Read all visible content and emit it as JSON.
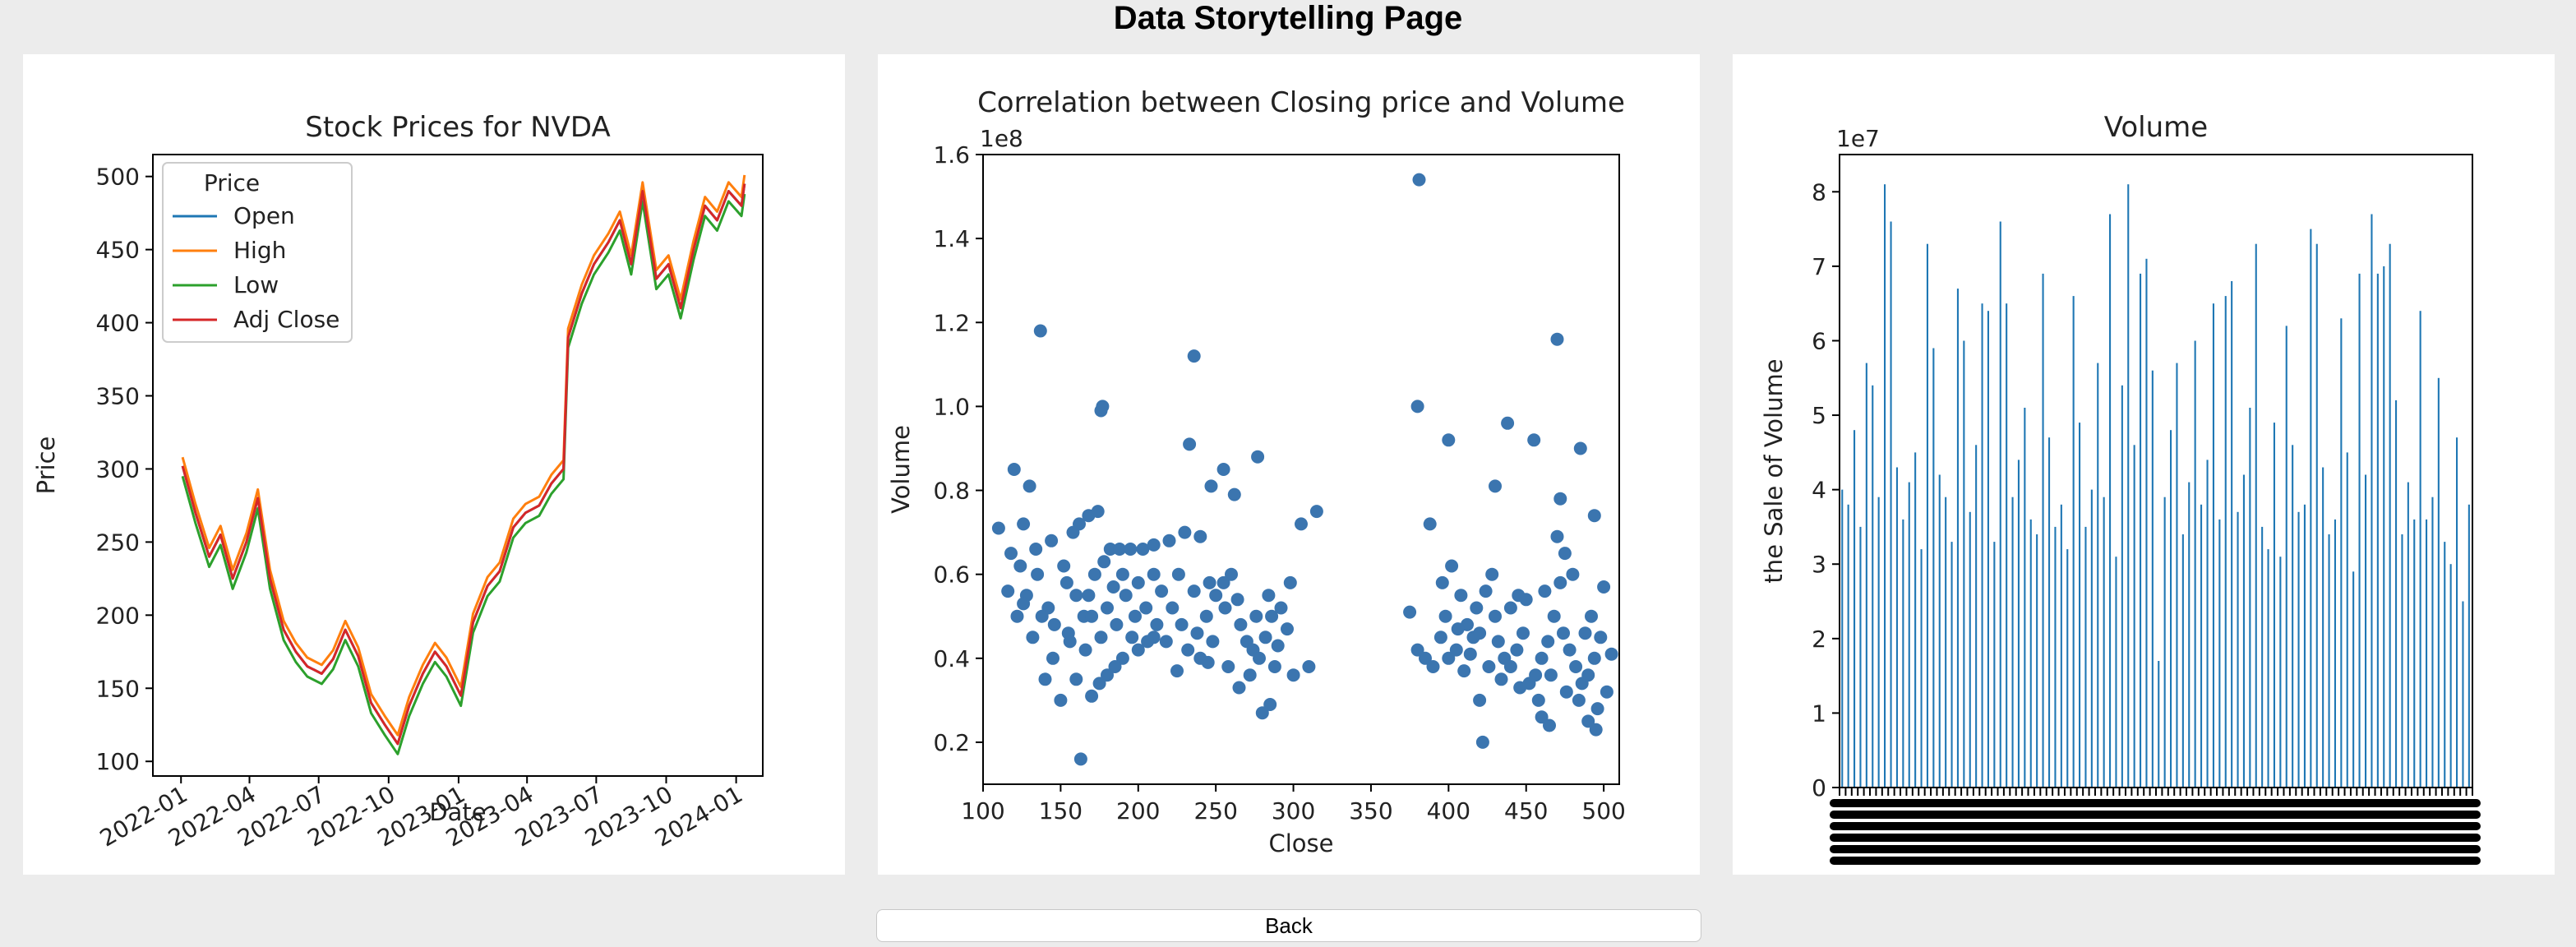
{
  "page": {
    "title": "Data Storytelling Page",
    "back_label": "Back"
  },
  "chart_data": [
    {
      "type": "line",
      "title": "Stock Prices for NVDA",
      "xlabel": "Date",
      "ylabel": "Price",
      "legend_title": "Price",
      "legend_position": "top-left",
      "xlim": [
        "2021-11-25",
        "2024-02-05"
      ],
      "ylim": [
        90,
        515
      ],
      "x_ticks": [
        "2022-01",
        "2022-04",
        "2022-07",
        "2022-10",
        "2023-01",
        "2023-04",
        "2023-07",
        "2023-10",
        "2024-01"
      ],
      "y_ticks": [
        100,
        150,
        200,
        250,
        300,
        350,
        400,
        450,
        500
      ],
      "x": [
        "2022-01-03",
        "2022-01-20",
        "2022-02-07",
        "2022-02-22",
        "2022-03-10",
        "2022-03-28",
        "2022-04-12",
        "2022-04-28",
        "2022-05-16",
        "2022-06-01",
        "2022-06-16",
        "2022-07-05",
        "2022-07-20",
        "2022-08-05",
        "2022-08-22",
        "2022-09-08",
        "2022-09-26",
        "2022-10-13",
        "2022-10-28",
        "2022-11-15",
        "2022-12-01",
        "2022-12-16",
        "2023-01-04",
        "2023-01-20",
        "2023-02-08",
        "2023-02-24",
        "2023-03-14",
        "2023-03-30",
        "2023-04-17",
        "2023-05-03",
        "2023-05-19",
        "2023-05-25",
        "2023-06-12",
        "2023-06-28",
        "2023-07-17",
        "2023-08-01",
        "2023-08-16",
        "2023-08-31",
        "2023-09-18",
        "2023-10-04",
        "2023-10-20",
        "2023-11-06",
        "2023-11-21",
        "2023-12-07",
        "2023-12-22",
        "2024-01-08",
        "2024-01-12"
      ],
      "series": [
        {
          "name": "Open",
          "color": "#1f77b4"
        },
        {
          "name": "High",
          "color": "#ff7f0e"
        },
        {
          "name": "Low",
          "color": "#2ca02c"
        },
        {
          "name": "Adj Close",
          "color": "#d62728",
          "values": [
            302,
            270,
            240,
            255,
            225,
            250,
            280,
            225,
            190,
            175,
            165,
            160,
            170,
            190,
            172,
            140,
            125,
            112,
            138,
            160,
            175,
            165,
            145,
            195,
            220,
            230,
            260,
            270,
            275,
            290,
            300,
            390,
            420,
            440,
            455,
            470,
            440,
            490,
            430,
            440,
            410,
            450,
            480,
            470,
            490,
            480,
            495
          ]
        }
      ]
    },
    {
      "type": "scatter",
      "title": "Correlation between Closing price and Volume",
      "xlabel": "Close",
      "ylabel": "Volume",
      "y_offset_label": "1e8",
      "xlim": [
        100,
        510
      ],
      "ylim": [
        0.1,
        1.6
      ],
      "x_ticks": [
        100,
        150,
        200,
        250,
        300,
        350,
        400,
        450,
        500
      ],
      "y_ticks": [
        0.2,
        0.4,
        0.6,
        0.8,
        1.0,
        1.2,
        1.4,
        1.6
      ],
      "color": "#3b75af",
      "points": [
        [
          137,
          1.18
        ],
        [
          163,
          0.16
        ],
        [
          176,
          0.99
        ],
        [
          177,
          1.0
        ],
        [
          233,
          0.91
        ],
        [
          236,
          1.12
        ],
        [
          247,
          0.81
        ],
        [
          255,
          0.85
        ],
        [
          262,
          0.79
        ],
        [
          277,
          0.88
        ],
        [
          305,
          0.72
        ],
        [
          315,
          0.75
        ],
        [
          120,
          0.85
        ],
        [
          126,
          0.72
        ],
        [
          130,
          0.81
        ],
        [
          110,
          0.71
        ],
        [
          375,
          0.51
        ],
        [
          381,
          1.54
        ],
        [
          380,
          1.0
        ],
        [
          388,
          0.72
        ],
        [
          400,
          0.92
        ],
        [
          422,
          0.2
        ],
        [
          430,
          0.81
        ],
        [
          438,
          0.96
        ],
        [
          455,
          0.92
        ],
        [
          470,
          1.16
        ],
        [
          485,
          0.9
        ],
        [
          494,
          0.74
        ],
        [
          500,
          0.57
        ],
        [
          505,
          0.41
        ],
        [
          490,
          0.25
        ],
        [
          495,
          0.23
        ],
        [
          465,
          0.24
        ],
        [
          460,
          0.26
        ],
        [
          480,
          0.6
        ],
        [
          475,
          0.65
        ],
        [
          470,
          0.69
        ],
        [
          472,
          0.78
        ],
        [
          445,
          0.55
        ],
        [
          410,
          0.37
        ],
        [
          400,
          0.4
        ],
        [
          395,
          0.45
        ],
        [
          385,
          0.4
        ],
        [
          416,
          0.45
        ],
        [
          420,
          0.3
        ],
        [
          150,
          0.3
        ],
        [
          160,
          0.35
        ],
        [
          170,
          0.31
        ],
        [
          280,
          0.27
        ],
        [
          285,
          0.29
        ],
        [
          300,
          0.36
        ],
        [
          310,
          0.38
        ],
        [
          265,
          0.33
        ],
        [
          245,
          0.39
        ],
        [
          225,
          0.37
        ],
        [
          210,
          0.45
        ],
        [
          200,
          0.42
        ],
        [
          190,
          0.4
        ],
        [
          185,
          0.38
        ],
        [
          180,
          0.36
        ],
        [
          175,
          0.34
        ],
        [
          140,
          0.35
        ],
        [
          145,
          0.4
        ],
        [
          155,
          0.46
        ],
        [
          165,
          0.5
        ],
        [
          168,
          0.55
        ],
        [
          172,
          0.6
        ],
        [
          178,
          0.63
        ],
        [
          182,
          0.66
        ],
        [
          188,
          0.66
        ],
        [
          195,
          0.66
        ],
        [
          203,
          0.66
        ],
        [
          210,
          0.67
        ],
        [
          220,
          0.68
        ],
        [
          230,
          0.7
        ],
        [
          240,
          0.69
        ],
        [
          135,
          0.6
        ],
        [
          128,
          0.55
        ],
        [
          122,
          0.5
        ],
        [
          118,
          0.65
        ],
        [
          132,
          0.45
        ],
        [
          142,
          0.52
        ],
        [
          152,
          0.62
        ],
        [
          158,
          0.7
        ],
        [
          162,
          0.72
        ],
        [
          168,
          0.74
        ],
        [
          174,
          0.75
        ],
        [
          184,
          0.57
        ],
        [
          192,
          0.55
        ],
        [
          198,
          0.5
        ],
        [
          205,
          0.52
        ],
        [
          215,
          0.56
        ],
        [
          222,
          0.52
        ],
        [
          228,
          0.48
        ],
        [
          238,
          0.46
        ],
        [
          244,
          0.5
        ],
        [
          250,
          0.55
        ],
        [
          255,
          0.58
        ],
        [
          260,
          0.6
        ],
        [
          266,
          0.48
        ],
        [
          270,
          0.44
        ],
        [
          274,
          0.42
        ],
        [
          278,
          0.4
        ],
        [
          282,
          0.45
        ],
        [
          286,
          0.5
        ],
        [
          290,
          0.43
        ],
        [
          296,
          0.47
        ],
        [
          288,
          0.38
        ],
        [
          272,
          0.36
        ],
        [
          258,
          0.38
        ],
        [
          248,
          0.44
        ],
        [
          240,
          0.4
        ],
        [
          232,
          0.42
        ],
        [
          218,
          0.44
        ],
        [
          212,
          0.48
        ],
        [
          206,
          0.44
        ],
        [
          196,
          0.45
        ],
        [
          186,
          0.48
        ],
        [
          176,
          0.45
        ],
        [
          166,
          0.42
        ],
        [
          156,
          0.44
        ],
        [
          146,
          0.48
        ],
        [
          138,
          0.5
        ],
        [
          126,
          0.53
        ],
        [
          116,
          0.56
        ],
        [
          124,
          0.62
        ],
        [
          134,
          0.66
        ],
        [
          144,
          0.68
        ],
        [
          154,
          0.58
        ],
        [
          160,
          0.55
        ],
        [
          170,
          0.5
        ],
        [
          180,
          0.52
        ],
        [
          190,
          0.6
        ],
        [
          200,
          0.58
        ],
        [
          210,
          0.6
        ],
        [
          226,
          0.6
        ],
        [
          236,
          0.56
        ],
        [
          246,
          0.58
        ],
        [
          256,
          0.52
        ],
        [
          264,
          0.54
        ],
        [
          276,
          0.5
        ],
        [
          284,
          0.55
        ],
        [
          292,
          0.52
        ],
        [
          298,
          0.58
        ],
        [
          380,
          0.42
        ],
        [
          390,
          0.38
        ],
        [
          398,
          0.5
        ],
        [
          405,
          0.42
        ],
        [
          412,
          0.48
        ],
        [
          418,
          0.52
        ],
        [
          424,
          0.56
        ],
        [
          428,
          0.6
        ],
        [
          432,
          0.44
        ],
        [
          436,
          0.4
        ],
        [
          440,
          0.38
        ],
        [
          444,
          0.42
        ],
        [
          448,
          0.46
        ],
        [
          452,
          0.34
        ],
        [
          456,
          0.36
        ],
        [
          460,
          0.4
        ],
        [
          464,
          0.44
        ],
        [
          468,
          0.5
        ],
        [
          474,
          0.46
        ],
        [
          478,
          0.42
        ],
        [
          482,
          0.38
        ],
        [
          486,
          0.34
        ],
        [
          490,
          0.36
        ],
        [
          494,
          0.4
        ],
        [
          498,
          0.45
        ],
        [
          502,
          0.32
        ],
        [
          496,
          0.28
        ],
        [
          484,
          0.3
        ],
        [
          476,
          0.32
        ],
        [
          466,
          0.36
        ],
        [
          458,
          0.3
        ],
        [
          446,
          0.33
        ],
        [
          434,
          0.35
        ],
        [
          426,
          0.38
        ],
        [
          414,
          0.41
        ],
        [
          406,
          0.47
        ],
        [
          396,
          0.58
        ],
        [
          402,
          0.62
        ],
        [
          408,
          0.55
        ],
        [
          420,
          0.46
        ],
        [
          430,
          0.5
        ],
        [
          440,
          0.52
        ],
        [
          450,
          0.54
        ],
        [
          462,
          0.56
        ],
        [
          472,
          0.58
        ],
        [
          488,
          0.46
        ],
        [
          492,
          0.5
        ]
      ]
    },
    {
      "type": "bar",
      "title": "Volume",
      "ylabel": "the Sale of Volume",
      "y_offset_label": "1e7",
      "ylim": [
        0,
        8.5
      ],
      "y_ticks": [
        0,
        1,
        2,
        3,
        4,
        5,
        6,
        7,
        8
      ],
      "color": "#1f77b4",
      "values": [
        4.0,
        3.8,
        4.8,
        3.5,
        5.7,
        5.4,
        3.9,
        8.1,
        7.6,
        4.3,
        3.6,
        4.1,
        4.5,
        3.2,
        7.3,
        5.9,
        4.2,
        3.9,
        3.3,
        6.7,
        6.0,
        3.7,
        4.6,
        6.5,
        6.4,
        3.3,
        7.6,
        6.5,
        3.9,
        4.4,
        5.1,
        3.6,
        3.4,
        6.9,
        4.7,
        3.5,
        3.8,
        3.2,
        6.6,
        4.9,
        3.5,
        4.0,
        5.7,
        3.9,
        7.7,
        3.1,
        5.4,
        8.1,
        4.6,
        6.9,
        7.1,
        5.6,
        1.7,
        3.9,
        4.8,
        5.7,
        3.4,
        4.1,
        6.0,
        3.8,
        4.4,
        6.5,
        3.6,
        6.6,
        6.8,
        3.7,
        4.2,
        5.1,
        7.3,
        3.5,
        3.2,
        4.9,
        3.1,
        6.2,
        4.6,
        3.7,
        3.8,
        7.5,
        7.3,
        4.3,
        3.4,
        3.6,
        6.3,
        4.5,
        2.9,
        6.9,
        4.2,
        7.7,
        6.9,
        7.0,
        7.3,
        5.2,
        3.4,
        4.1,
        3.6,
        6.4,
        3.6,
        3.9,
        5.5,
        3.3,
        3.0,
        4.7,
        2.5,
        3.8
      ]
    }
  ]
}
